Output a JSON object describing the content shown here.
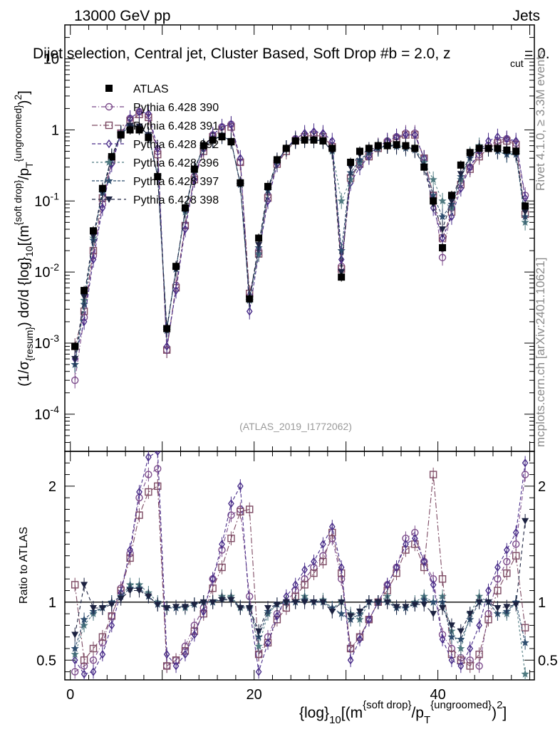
{
  "header": {
    "left": "13000 GeV pp",
    "right": "Jets",
    "title": "Dijet selection, Central jet, Cluster Based, Soft Drop #b = 2.0, z"
  },
  "side": {
    "rivet": "Rivet 4.1.0, ≥ 3.3M events",
    "mcplots": "mcplots.cern.ch [arXiv:2401.10621]"
  },
  "chart_data": {
    "type": "line",
    "analysis": "(ATLAS_2019_I1772062)",
    "title": "Dijet selection, Central jet, Cluster Based, Soft Drop #b = 2.0, z_cut = 0.",
    "xlabel": "{log}_10[(m^{soft drop}/p_T^{ungroomed})^2]",
    "ylabel": "(1/σ_{resum}) dσ/d {log}_10[(m^{soft drop}/p_T^{ungroomed})^2]",
    "ratio_ylabel": "Ratio to ATLAS",
    "xlim": [
      -0.6,
      50.5
    ],
    "ylim": [
      3e-05,
      30
    ],
    "ylog": true,
    "ratio_ylim": [
      0.33,
      2.3
    ],
    "x_ticks": [
      "0",
      "20",
      "40"
    ],
    "y_ticks": [
      "10^{-4}",
      "10^{-3}",
      "10^{-2}",
      "10^{-1}",
      "1",
      "10"
    ],
    "ratio_ticks": [
      "0.5",
      "1",
      "2"
    ],
    "x": [
      0.5,
      1.5,
      2.5,
      3.5,
      4.5,
      5.5,
      6.5,
      7.5,
      8.5,
      9.5,
      10.5,
      11.5,
      12.5,
      13.5,
      14.5,
      15.5,
      16.5,
      17.5,
      18.5,
      19.5,
      20.5,
      21.5,
      22.5,
      23.5,
      24.5,
      25.5,
      26.5,
      27.5,
      28.5,
      29.5,
      30.5,
      31.5,
      32.5,
      33.5,
      34.5,
      35.5,
      36.5,
      37.5,
      38.5,
      39.5,
      40.5,
      41.5,
      42.5,
      43.5,
      44.5,
      45.5,
      46.5,
      47.5,
      48.5,
      49.5
    ],
    "series": [
      {
        "name": "ATLAS",
        "values": [
          0.0009,
          0.0055,
          0.038,
          0.15,
          0.42,
          0.85,
          1.0,
          1.0,
          0.78,
          0.22,
          0.0016,
          0.012,
          0.08,
          0.28,
          0.6,
          0.72,
          0.8,
          0.68,
          0.18,
          0.0042,
          0.03,
          0.16,
          0.38,
          0.55,
          0.7,
          0.72,
          0.72,
          0.7,
          0.55,
          0.0085,
          0.35,
          0.5,
          0.55,
          0.6,
          0.6,
          0.62,
          0.6,
          0.55,
          0.3,
          0.1,
          0.022,
          0.12,
          0.32,
          0.48,
          0.55,
          0.55,
          0.55,
          0.52,
          0.5,
          0.085
        ],
        "ratio": [
          1,
          1,
          1,
          1,
          1,
          1,
          1,
          1,
          1,
          1,
          1,
          1,
          1,
          1,
          1,
          1,
          1,
          1,
          1,
          1,
          1,
          1,
          1,
          1,
          1,
          1,
          1,
          1,
          1,
          1,
          1,
          1,
          1,
          1,
          1,
          1,
          1,
          1,
          1,
          1,
          1,
          1,
          1,
          1,
          1,
          1,
          1,
          1,
          1,
          1
        ]
      },
      {
        "name": "Pythia 6.428 390",
        "values": [
          0.0003,
          0.0023,
          0.017,
          0.09,
          0.35,
          0.9,
          1.45,
          1.8,
          1.6,
          0.5,
          0.0008,
          0.0065,
          0.045,
          0.22,
          0.55,
          0.85,
          1.1,
          1.2,
          0.35,
          0.0045,
          0.02,
          0.12,
          0.35,
          0.55,
          0.75,
          0.85,
          0.9,
          0.85,
          0.6,
          0.012,
          0.22,
          0.35,
          0.45,
          0.6,
          0.7,
          0.8,
          0.9,
          0.9,
          0.4,
          0.12,
          0.016,
          0.08,
          0.18,
          0.3,
          0.45,
          0.6,
          0.7,
          0.75,
          0.65,
          0.12
        ],
        "ratio": [
          0.4,
          0.45,
          0.5,
          0.65,
          0.88,
          1.12,
          1.42,
          1.9,
          2.1,
          2.15,
          0.45,
          0.5,
          0.62,
          0.8,
          0.95,
          1.2,
          1.45,
          1.75,
          1.8,
          1.05,
          0.55,
          0.7,
          0.9,
          1.0,
          1.1,
          1.2,
          1.3,
          1.4,
          1.55,
          1.2,
          0.6,
          0.7,
          0.85,
          1.0,
          1.15,
          1.3,
          1.55,
          1.6,
          1.35,
          1.2,
          0.72,
          0.6,
          0.52,
          0.5,
          0.45,
          0.9,
          1.2,
          1.35,
          1.5,
          2.1
        ]
      },
      {
        "name": "Pythia 6.428 391",
        "values": [
          0.0009,
          0.0028,
          0.02,
          0.11,
          0.38,
          0.9,
          1.35,
          1.65,
          1.5,
          0.45,
          0.0008,
          0.006,
          0.045,
          0.2,
          0.5,
          0.8,
          1.0,
          1.1,
          0.35,
          0.005,
          0.018,
          0.11,
          0.33,
          0.5,
          0.7,
          0.8,
          0.85,
          0.8,
          0.58,
          0.011,
          0.21,
          0.33,
          0.42,
          0.55,
          0.65,
          0.75,
          0.85,
          0.85,
          0.4,
          0.12,
          0.03,
          0.07,
          0.17,
          0.28,
          0.42,
          0.55,
          0.65,
          0.7,
          0.62,
          0.065
        ],
        "ratio": [
          1.15,
          0.5,
          0.6,
          0.7,
          0.88,
          1.1,
          1.38,
          1.75,
          1.95,
          2.0,
          0.45,
          0.5,
          0.58,
          0.75,
          0.9,
          1.12,
          1.3,
          1.55,
          1.78,
          1.8,
          0.55,
          0.65,
          0.85,
          0.95,
          1.05,
          1.15,
          1.25,
          1.35,
          1.6,
          1.25,
          0.6,
          0.7,
          0.85,
          1.0,
          1.1,
          1.25,
          1.45,
          1.5,
          1.3,
          2.1,
          1.2,
          0.55,
          0.5,
          0.45,
          0.55,
          0.85,
          1.1,
          1.25,
          1.4,
          0.78
        ]
      },
      {
        "name": "Pythia 6.428 392",
        "values": [
          0.0006,
          0.002,
          0.015,
          0.08,
          0.33,
          0.85,
          1.45,
          1.8,
          1.7,
          0.55,
          0.0009,
          0.0055,
          0.04,
          0.2,
          0.55,
          0.85,
          1.1,
          1.2,
          0.4,
          0.0028,
          0.018,
          0.1,
          0.33,
          0.55,
          0.75,
          0.9,
          0.95,
          0.9,
          0.7,
          0.015,
          0.18,
          0.3,
          0.42,
          0.58,
          0.7,
          0.8,
          0.85,
          0.85,
          0.4,
          0.08,
          0.03,
          0.06,
          0.15,
          0.3,
          0.5,
          0.7,
          0.8,
          0.75,
          0.7,
          0.11
        ],
        "ratio": [
          0.5,
          0.38,
          0.4,
          0.55,
          0.8,
          1.08,
          1.45,
          1.95,
          2.25,
          2.3,
          0.55,
          0.45,
          0.55,
          0.72,
          0.92,
          1.2,
          1.5,
          1.85,
          2.0,
          0.95,
          0.4,
          0.65,
          0.88,
          1.05,
          1.15,
          1.28,
          1.35,
          1.5,
          1.65,
          1.3,
          0.5,
          0.68,
          0.85,
          1.0,
          1.15,
          1.3,
          1.5,
          1.55,
          1.35,
          1.15,
          0.68,
          0.5,
          0.45,
          0.6,
          0.8,
          1.1,
          1.3,
          1.45,
          1.6,
          2.2
        ]
      },
      {
        "name": "Pythia 6.428 396",
        "values": [
          0.0005,
          0.004,
          0.03,
          0.14,
          0.42,
          0.9,
          1.15,
          1.1,
          0.85,
          0.23,
          0.0016,
          0.011,
          0.07,
          0.27,
          0.58,
          0.72,
          0.85,
          0.7,
          0.17,
          0.004,
          0.018,
          0.14,
          0.36,
          0.55,
          0.72,
          0.75,
          0.72,
          0.72,
          0.5,
          0.1,
          0.2,
          0.35,
          0.48,
          0.55,
          0.62,
          0.6,
          0.58,
          0.55,
          0.35,
          0.2,
          0.1,
          0.08,
          0.2,
          0.45,
          0.6,
          0.55,
          0.5,
          0.45,
          0.48,
          0.05
        ],
        "ratio": [
          0.55,
          0.8,
          0.9,
          0.95,
          1.0,
          1.05,
          1.15,
          1.15,
          1.08,
          1.0,
          0.95,
          0.95,
          0.95,
          0.98,
          1.0,
          1.0,
          1.05,
          1.05,
          0.95,
          0.95,
          0.62,
          0.9,
          0.98,
          1.0,
          1.0,
          1.05,
          1.0,
          1.02,
          0.95,
          1.0,
          0.9,
          0.85,
          1.0,
          1.0,
          1.05,
          0.95,
          0.95,
          1.0,
          1.05,
          1.0,
          1.05,
          0.75,
          0.6,
          0.9,
          1.05,
          1.0,
          0.9,
          0.9,
          1.0,
          0.38
        ]
      },
      {
        "name": "Pythia 6.428 397",
        "values": [
          0.0005,
          0.0035,
          0.028,
          0.13,
          0.4,
          0.88,
          1.12,
          1.1,
          0.85,
          0.22,
          0.0015,
          0.011,
          0.075,
          0.27,
          0.58,
          0.72,
          0.82,
          0.7,
          0.17,
          0.004,
          0.022,
          0.14,
          0.36,
          0.55,
          0.7,
          0.72,
          0.72,
          0.7,
          0.52,
          0.02,
          0.25,
          0.38,
          0.48,
          0.55,
          0.6,
          0.58,
          0.55,
          0.52,
          0.32,
          0.12,
          0.06,
          0.09,
          0.22,
          0.4,
          0.55,
          0.55,
          0.5,
          0.45,
          0.45,
          0.06
        ],
        "ratio": [
          0.6,
          0.85,
          0.92,
          0.95,
          1.0,
          1.05,
          1.12,
          1.12,
          1.05,
          0.98,
          0.95,
          0.95,
          0.96,
          0.98,
          1.0,
          1.0,
          1.03,
          1.03,
          0.96,
          0.96,
          0.7,
          0.92,
          0.98,
          1.0,
          1.0,
          1.02,
          1.0,
          1.0,
          0.95,
          0.9,
          0.85,
          0.9,
          1.0,
          1.0,
          1.0,
          0.95,
          0.95,
          0.98,
          1.02,
          1.0,
          1.0,
          0.7,
          0.68,
          0.85,
          1.0,
          1.0,
          0.9,
          0.92,
          1.0,
          0.65
        ]
      },
      {
        "name": "Pythia 6.428 398",
        "values": [
          0.0006,
          0.0045,
          0.032,
          0.14,
          0.42,
          0.88,
          1.15,
          1.12,
          0.85,
          0.22,
          0.0016,
          0.011,
          0.075,
          0.28,
          0.58,
          0.72,
          0.83,
          0.7,
          0.17,
          0.0042,
          0.024,
          0.15,
          0.37,
          0.55,
          0.71,
          0.73,
          0.72,
          0.7,
          0.5,
          0.01,
          0.3,
          0.45,
          0.52,
          0.58,
          0.6,
          0.6,
          0.58,
          0.53,
          0.3,
          0.09,
          0.04,
          0.1,
          0.24,
          0.42,
          0.55,
          0.55,
          0.52,
          0.5,
          0.48,
          0.07
        ],
        "ratio": [
          0.72,
          1.15,
          0.95,
          0.95,
          0.98,
          1.03,
          1.1,
          1.1,
          1.05,
          0.98,
          0.95,
          0.96,
          0.96,
          0.98,
          1.0,
          1.0,
          1.02,
          1.02,
          0.95,
          0.95,
          0.75,
          0.95,
          0.98,
          1.0,
          1.0,
          1.0,
          1.0,
          1.0,
          0.92,
          1.0,
          0.88,
          0.92,
          1.0,
          1.0,
          1.0,
          0.96,
          0.96,
          0.98,
          0.98,
          0.9,
          0.95,
          0.8,
          0.75,
          0.9,
          1.0,
          1.0,
          0.95,
          0.96,
          0.98,
          1.7
        ]
      }
    ],
    "colors": [
      "#000000",
      "#7b4a8a",
      "#7d4a63",
      "#4a2e8a",
      "#4f7a80",
      "#2e4d6e",
      "#1c2240"
    ],
    "markers": [
      "square-filled",
      "circle-open",
      "square-open",
      "diamond-open",
      "star-filled",
      "star-filled",
      "triangle-down-filled"
    ]
  }
}
